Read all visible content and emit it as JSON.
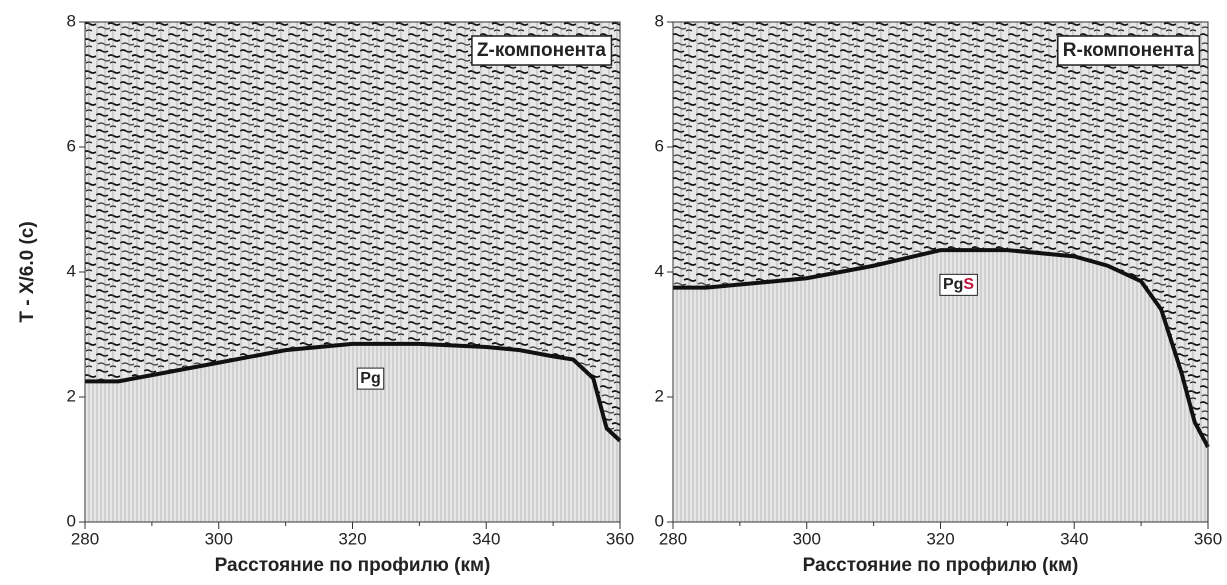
{
  "chart_data": [
    {
      "type": "wiggle",
      "title": "Z-компонента",
      "annotation": "Pg",
      "xlabel": "Расстояние по профилю (км)",
      "ylabel": "T - X/6.0 (с)",
      "x": [
        280,
        285,
        290,
        300,
        310,
        320,
        330,
        340,
        345,
        350,
        353,
        356,
        358,
        360
      ],
      "values": [
        2.25,
        2.25,
        2.35,
        2.55,
        2.75,
        2.85,
        2.85,
        2.8,
        2.75,
        2.65,
        2.6,
        2.3,
        1.5,
        1.3
      ],
      "color": "#111111",
      "xlim": [
        280,
        360
      ],
      "xticks": [
        280,
        300,
        320,
        340,
        360
      ],
      "xminorticks": [
        290,
        310,
        330,
        350
      ],
      "ylim": [
        0,
        8
      ],
      "yticks": [
        0,
        2,
        4,
        6,
        8
      ]
    },
    {
      "type": "wiggle",
      "title": "R-компонента",
      "annotation": "PgS",
      "annotation_accent_color": "#c0143c",
      "xlabel": "Расстояние по профилю (км)",
      "x": [
        280,
        285,
        290,
        300,
        310,
        320,
        330,
        340,
        345,
        350,
        353,
        356,
        358,
        360
      ],
      "values": [
        3.75,
        3.75,
        3.8,
        3.9,
        4.1,
        4.35,
        4.35,
        4.25,
        4.1,
        3.85,
        3.4,
        2.4,
        1.6,
        1.2
      ],
      "color": "#111111",
      "xlim": [
        280,
        360
      ],
      "xticks": [
        280,
        300,
        320,
        340,
        360
      ],
      "xminorticks": [
        290,
        310,
        330,
        350
      ],
      "ylim": [
        0,
        8
      ],
      "yticks": [
        0,
        2,
        4,
        6,
        8
      ]
    }
  ]
}
